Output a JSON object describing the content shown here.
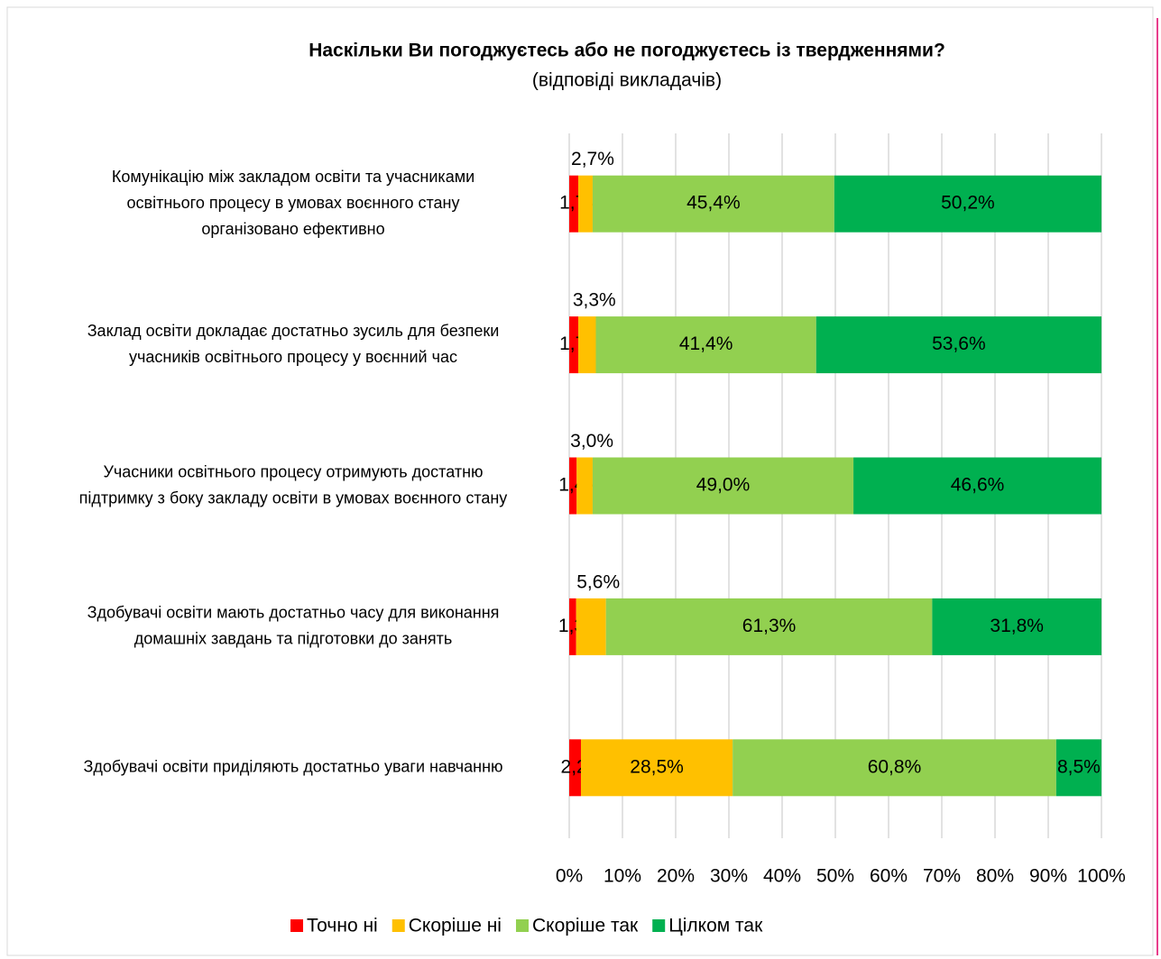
{
  "chart_data": {
    "type": "stacked_barh",
    "title": "Наскільки Ви погоджуєтесь або не погоджуєтесь із твердженнями?",
    "subtitle": "(відповіді викладачів)",
    "categories": [
      [
        "Комунікацію між закладом освіти та учасниками",
        "освітнього процесу в умовах воєнного стану",
        "організовано ефективно"
      ],
      [
        "Заклад освіти докладає достатньо зусиль для безпеки",
        "учасників освітнього процесу у воєнний час"
      ],
      [
        "Учасники освітнього процесу отримують достатню",
        "підтримку з боку закладу освіти в умовах воєнного стану"
      ],
      [
        "Здобувачі освіти  мають достатньо часу для виконання",
        "домашніх завдань та підготовки до занять"
      ],
      [
        "Здобувачі освіти приділяють достатньо уваги навчанню"
      ]
    ],
    "series": [
      {
        "name": "Точно ні",
        "color": "#ff0000",
        "values": [
          1.7,
          1.7,
          1.4,
          1.3,
          2.2
        ],
        "value_labels": [
          "1,7%",
          "1,7%",
          "1,4%",
          "1,3%",
          "2,2%"
        ]
      },
      {
        "name": "Скоріше ні",
        "color": "#ffc000",
        "values": [
          2.7,
          3.3,
          3.0,
          5.6,
          28.5
        ],
        "value_labels": [
          "2,7%",
          "3,3%",
          "3,0%",
          "5,6%",
          "28,5%"
        ]
      },
      {
        "name": "Скоріше так",
        "color": "#92d050",
        "values": [
          45.4,
          41.4,
          49.0,
          61.3,
          60.8
        ],
        "value_labels": [
          "45,4%",
          "41,4%",
          "49,0%",
          "61,3%",
          "60,8%"
        ]
      },
      {
        "name": "Цілком так",
        "color": "#00b050",
        "values": [
          50.2,
          53.6,
          46.6,
          31.8,
          8.5
        ],
        "value_labels": [
          "50,2%",
          "53,6%",
          "46,6%",
          "31,8%",
          "8,5%"
        ]
      }
    ],
    "xlim": [
      0,
      100
    ],
    "xticks": [
      {
        "value": 0,
        "label": "0%"
      },
      {
        "value": 10,
        "label": "10%"
      },
      {
        "value": 20,
        "label": "20%"
      },
      {
        "value": 30,
        "label": "30%"
      },
      {
        "value": 40,
        "label": "40%"
      },
      {
        "value": 50,
        "label": "50%"
      },
      {
        "value": 60,
        "label": "60%"
      },
      {
        "value": 70,
        "label": "70%"
      },
      {
        "value": 80,
        "label": "80%"
      },
      {
        "value": 90,
        "label": "90%"
      },
      {
        "value": 100,
        "label": "100%"
      }
    ],
    "grid": true,
    "legend": "bottom"
  }
}
